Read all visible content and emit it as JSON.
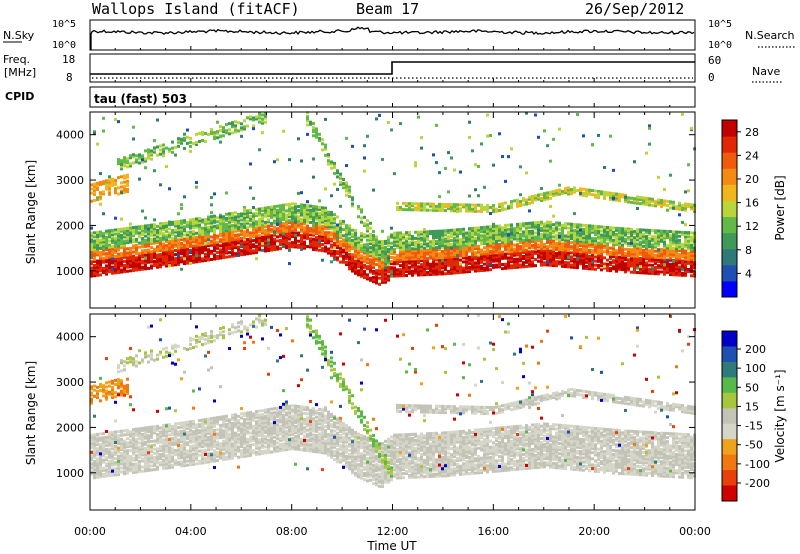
{
  "header": {
    "station": "Wallops Island (fitACF)",
    "beam": "Beam 17",
    "date": "26/Sep/2012"
  },
  "strips": {
    "nsky_label": "N.Sky",
    "nsky_hi": "10^5",
    "nsky_lo": "10^0",
    "nsearch_hi": "10^5",
    "nsearch_lo": "10^0",
    "nsearch_label": "N.Search",
    "freq_label": "Freq.",
    "freq_unit": "[MHz]",
    "freq_hi": "18",
    "freq_lo": "8",
    "nave_hi": "60",
    "nave_lo": "0",
    "nave_label": "Nave",
    "cpid_label": "CPID",
    "cpid_value": "tau (fast) 503"
  },
  "colors": {
    "power": [
      "#0000ff",
      "#1e4fb4",
      "#2f7a78",
      "#3f9a5a",
      "#62b848",
      "#b9d53a",
      "#f2b51e",
      "#f58a13",
      "#ef5a0c",
      "#e02805",
      "#c20000"
    ],
    "velocity": [
      "#0000c8",
      "#1f4fb0",
      "#2f7b79",
      "#57b94a",
      "#a6c63d",
      "#c3c3b8",
      "#d6d6c8",
      "#f0a21c",
      "#f0780e",
      "#e8400a",
      "#d00000"
    ]
  },
  "chart_data": [
    {
      "type": "heatmap",
      "name": "Power",
      "xlabel": "Time UT",
      "ylabel": "Slant Range [km]",
      "xlim": [
        "00:00",
        "24:00"
      ],
      "ylim": [
        180,
        4500
      ],
      "x_ticks": [
        "00:00",
        "04:00",
        "08:00",
        "12:00",
        "16:00",
        "20:00",
        "00:00"
      ],
      "y_ticks": [
        1000,
        2000,
        3000,
        4000
      ],
      "colorbar": {
        "label": "Power [dB]",
        "ticks": [
          4,
          8,
          12,
          16,
          20,
          24,
          28
        ],
        "range": [
          0,
          30
        ]
      },
      "features": [
        {
          "desc": "strong scatter band",
          "t": [
            0,
            4,
            8,
            9.3,
            10.5,
            11.5,
            12,
            14,
            18,
            21,
            24
          ],
          "range_km": [
            1150,
            1450,
            1800,
            1700,
            1200,
            950,
            1150,
            1200,
            1400,
            1250,
            1150
          ],
          "db": 24
        },
        {
          "desc": "upper band",
          "t": [
            12,
            16,
            19,
            24
          ],
          "range_km": [
            2400,
            2350,
            2750,
            2350
          ],
          "db": 14
        }
      ]
    },
    {
      "type": "heatmap",
      "name": "Velocity",
      "xlabel": "Time UT",
      "ylabel": "Slant Range [km]",
      "xlim": [
        "00:00",
        "24:00"
      ],
      "ylim": [
        180,
        4500
      ],
      "x_ticks": [
        "00:00",
        "04:00",
        "08:00",
        "12:00",
        "16:00",
        "20:00",
        "00:00"
      ],
      "y_ticks": [
        1000,
        2000,
        3000,
        4000
      ],
      "colorbar": {
        "label": "Velocity [m s^-1]",
        "ticks": [
          200,
          100,
          50,
          15,
          -15,
          -50,
          -100,
          -200
        ],
        "range": [
          -250,
          250
        ]
      }
    }
  ],
  "axis": {
    "xlabel": "Time UT",
    "x_ticks": [
      "00:00",
      "04:00",
      "08:00",
      "12:00",
      "16:00",
      "20:00",
      "00:00"
    ],
    "ylabel": "Slant Range [km]",
    "y_ticks": [
      "1000",
      "2000",
      "3000",
      "4000"
    ],
    "power_label": "Power [dB]",
    "power_ticks": [
      "4",
      "8",
      "12",
      "16",
      "20",
      "24",
      "28"
    ],
    "vel_label": "Velocity [m s⁻¹]",
    "vel_ticks": [
      "200",
      "100",
      "50",
      "15",
      "-15",
      "-50",
      "-100",
      "-200"
    ]
  }
}
